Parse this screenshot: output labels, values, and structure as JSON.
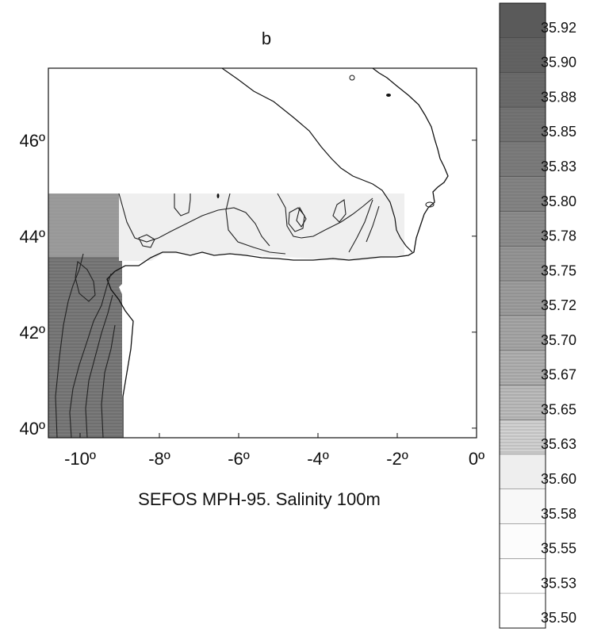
{
  "panel_label": "b",
  "caption": "SEFOS MPH-95. Salinity 100m",
  "map": {
    "lon_range": [
      -10.8,
      0
    ],
    "lat_range": [
      39.8,
      47.5
    ],
    "x_ticks": [
      {
        "value": -10,
        "label": "-10º"
      },
      {
        "value": -8,
        "label": "-8º"
      },
      {
        "value": -6,
        "label": "-6º"
      },
      {
        "value": -4,
        "label": "-4º"
      },
      {
        "value": -2,
        "label": "-2º"
      },
      {
        "value": 0,
        "label": "0º"
      }
    ],
    "y_ticks": [
      {
        "value": 40,
        "label": "40º"
      },
      {
        "value": 42,
        "label": "42º"
      },
      {
        "value": 44,
        "label": "44º"
      },
      {
        "value": 46,
        "label": "46º"
      }
    ],
    "data_extent": {
      "lon": [
        -10.8,
        -1.5
      ],
      "lat": [
        39.8,
        44.9
      ]
    },
    "colors": {
      "land": "#ffffff",
      "coast": "#111111",
      "contour": "#222222"
    }
  },
  "colorbar": {
    "levels": [
      {
        "value": "35.92",
        "shade": "#5a5a5a"
      },
      {
        "value": "35.90",
        "shade": "#626262"
      },
      {
        "value": "35.88",
        "shade": "#6a6a6a"
      },
      {
        "value": "35.85",
        "shade": "#737373"
      },
      {
        "value": "35.83",
        "shade": "#7b7b7b"
      },
      {
        "value": "35.80",
        "shade": "#848484"
      },
      {
        "value": "35.78",
        "shade": "#8c8c8c"
      },
      {
        "value": "35.75",
        "shade": "#959595"
      },
      {
        "value": "35.72",
        "shade": "#9d9d9d"
      },
      {
        "value": "35.70",
        "shade": "#a6a6a6"
      },
      {
        "value": "35.67",
        "shade": "#b0b0b0"
      },
      {
        "value": "35.65",
        "shade": "#bcbcbc"
      },
      {
        "value": "35.63",
        "shade": "#d2d2d2"
      },
      {
        "value": "35.60",
        "shade": "#eeeeee"
      },
      {
        "value": "35.58",
        "shade": "#f8f8f8"
      },
      {
        "value": "35.55",
        "shade": "#fcfcfc"
      },
      {
        "value": "35.53",
        "shade": "#ffffff"
      },
      {
        "value": "35.50",
        "shade": "#ffffff"
      }
    ]
  }
}
